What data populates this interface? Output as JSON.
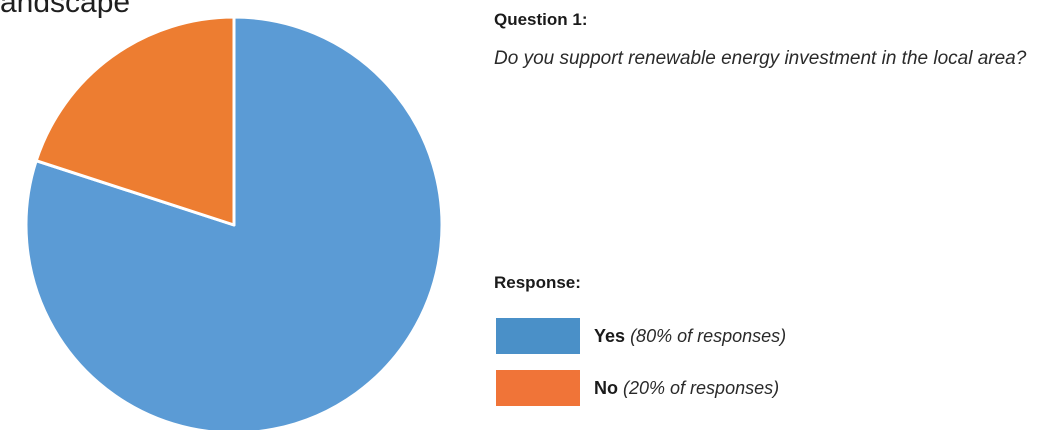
{
  "header_fragment": "andscape",
  "question": {
    "label": "Question 1:",
    "text": "Do you support renewable energy investment in the local area?"
  },
  "response": {
    "label": "Response:"
  },
  "chart_data": {
    "type": "pie",
    "categories": [
      "Yes",
      "No"
    ],
    "values": [
      80,
      20
    ],
    "slice_colors": [
      "#5b9bd5",
      "#ed7d31"
    ],
    "legend": [
      {
        "name": "Yes",
        "detail": "(80% of responses)",
        "color": "#4a90c8"
      },
      {
        "name": "No",
        "detail": "(20% of responses)",
        "color": "#f07438"
      }
    ],
    "legend_position": "right"
  }
}
